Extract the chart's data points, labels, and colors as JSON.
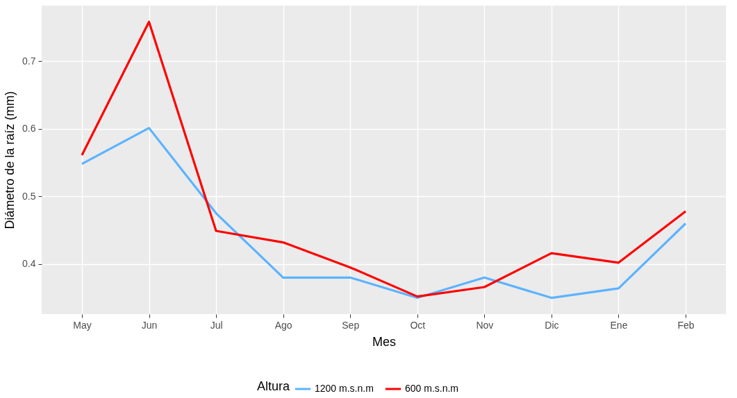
{
  "chart_data": {
    "type": "line",
    "xlabel": "Mes",
    "ylabel": "Diámetro de la raíz (mm)",
    "legend_title": "Altura",
    "categories": [
      "May",
      "Jun",
      "Jul",
      "Ago",
      "Sep",
      "Oct",
      "Nov",
      "Dic",
      "Ene",
      "Feb"
    ],
    "series": [
      {
        "name": "1200 m.s.n.m",
        "color": "#5cb3ff",
        "values": [
          0.548,
          0.601,
          0.475,
          0.38,
          0.38,
          0.35,
          0.38,
          0.35,
          0.364,
          0.46
        ]
      },
      {
        "name": "600 m.s.n.m",
        "color": "#ff0000",
        "values": [
          0.561,
          0.758,
          0.449,
          0.432,
          0.395,
          0.352,
          0.366,
          0.416,
          0.402,
          0.478
        ]
      }
    ],
    "ylim": [
      0.326,
      0.782
    ],
    "yticks": [
      0.4,
      0.5,
      0.6,
      0.7
    ],
    "grid": true,
    "legend": "bottom",
    "line_style": "solid",
    "marker": "none"
  }
}
